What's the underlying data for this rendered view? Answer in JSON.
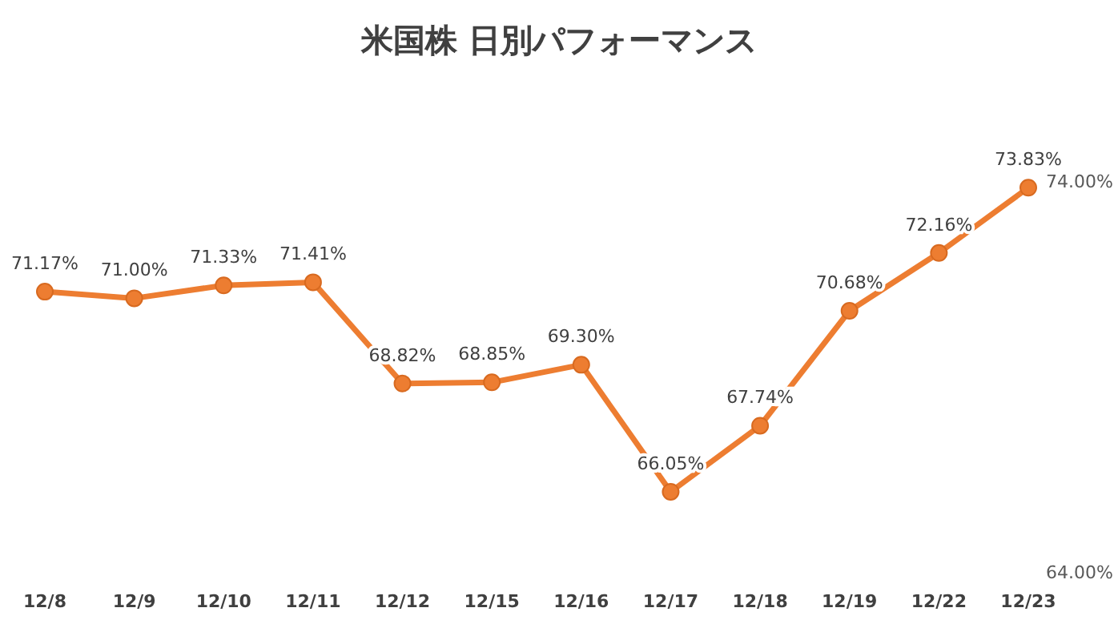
{
  "chart_data": {
    "type": "line",
    "title": "米国株 日別パフォーマンス",
    "categories": [
      "12/8",
      "12/9",
      "12/10",
      "12/11",
      "12/12",
      "12/15",
      "12/16",
      "12/17",
      "12/18",
      "12/19",
      "12/22",
      "12/23"
    ],
    "series": [
      {
        "color": "#ed7d31",
        "values": [
          71.17,
          71.0,
          71.33,
          71.41,
          68.82,
          68.85,
          69.3,
          66.05,
          67.74,
          70.68,
          72.16,
          73.83
        ],
        "value_labels": [
          "71.17%",
          "71.00%",
          "71.33%",
          "71.41%",
          "68.82%",
          "68.85%",
          "69.30%",
          "66.05%",
          "67.74%",
          "70.68%",
          "72.16%",
          "73.83%"
        ]
      }
    ],
    "ylim": [
      64,
      74
    ],
    "yticks": [
      {
        "value": 64,
        "label": "64.00%"
      },
      {
        "value": 74,
        "label": "74.00%"
      }
    ],
    "marker": "circle",
    "grid": false
  }
}
